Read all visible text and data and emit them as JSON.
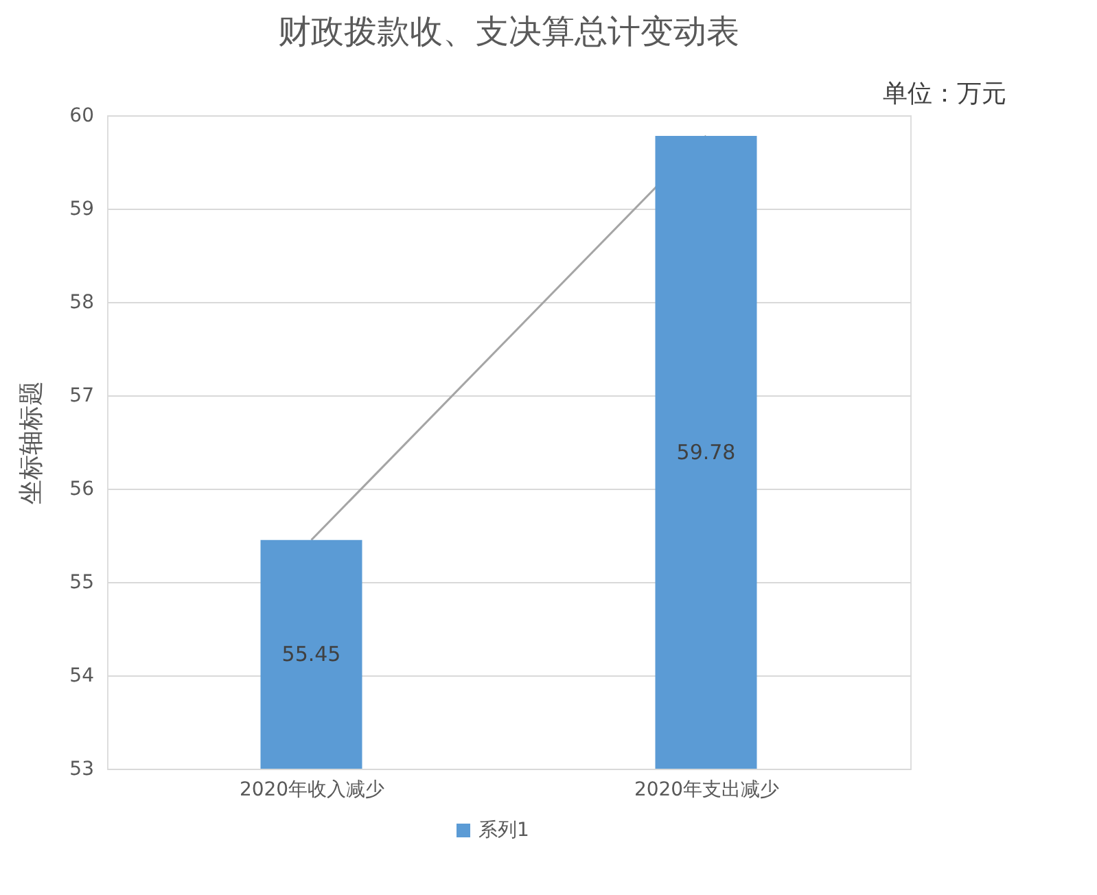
{
  "chart_data": {
    "type": "bar",
    "title": "财政拨款收、支决算总计变动表",
    "ylabel": "坐标轴标题",
    "annotations": [
      "单位：万元"
    ],
    "categories": [
      "2020年收入减少",
      "2020年支出减少"
    ],
    "series": [
      {
        "name": "系列1",
        "color": "#5b9bd5",
        "values": [
          55.45,
          59.78
        ]
      },
      {
        "type": "line",
        "color": "#a5a5a5",
        "values": [
          55.45,
          59.78
        ],
        "value_labels": [
          null,
          null
        ]
      }
    ],
    "ylim": [
      53,
      60
    ],
    "yticks": [
      53,
      54,
      55,
      56,
      57,
      58,
      59,
      60
    ],
    "grid": "y",
    "data_labels": true,
    "legend": "bottom"
  }
}
